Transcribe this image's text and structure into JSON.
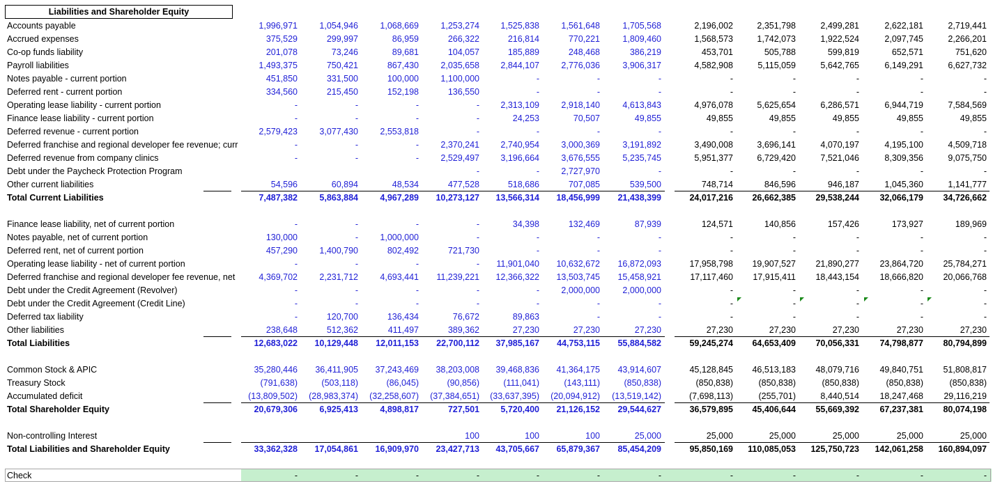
{
  "title": "Liabilities and Shareholder Equity",
  "colors": {
    "input_blue": "#1f1fd6",
    "check_green": "#c6efce",
    "error_triangle": "#1a8a1a"
  },
  "rows": [
    {
      "label": "Accounts payable",
      "values": [
        "1,996,971",
        "1,054,946",
        "1,068,669",
        "1,253,274",
        "1,525,838",
        "1,561,648",
        "1,705,568",
        "2,196,002",
        "2,351,798",
        "2,499,281",
        "2,622,181",
        "2,719,441"
      ]
    },
    {
      "label": "Accrued expenses",
      "values": [
        "375,529",
        "299,997",
        "86,959",
        "266,322",
        "216,814",
        "770,221",
        "1,809,460",
        "1,568,573",
        "1,742,073",
        "1,922,524",
        "2,097,745",
        "2,266,201"
      ]
    },
    {
      "label": "Co-op funds liability",
      "values": [
        "201,078",
        "73,246",
        "89,681",
        "104,057",
        "185,889",
        "248,468",
        "386,219",
        "453,701",
        "505,788",
        "599,819",
        "652,571",
        "751,620"
      ]
    },
    {
      "label": "Payroll liabilities",
      "values": [
        "1,493,375",
        "750,421",
        "867,430",
        "2,035,658",
        "2,844,107",
        "2,776,036",
        "3,906,317",
        "4,582,908",
        "5,115,059",
        "5,642,765",
        "6,149,291",
        "6,627,732"
      ]
    },
    {
      "label": "Notes payable - current portion",
      "values": [
        "451,850",
        "331,500",
        "100,000",
        "1,100,000",
        "-",
        "-",
        "-",
        "-",
        "-",
        "-",
        "-",
        "-"
      ]
    },
    {
      "label": "Deferred rent - current portion",
      "values": [
        "334,560",
        "215,450",
        "152,198",
        "136,550",
        "-",
        "-",
        "-",
        "-",
        "-",
        "-",
        "-",
        "-"
      ]
    },
    {
      "label": "Operating lease liability - current portion",
      "values": [
        "-",
        "-",
        "-",
        "-",
        "2,313,109",
        "2,918,140",
        "4,613,843",
        "4,976,078",
        "5,625,654",
        "6,286,571",
        "6,944,719",
        "7,584,569"
      ]
    },
    {
      "label": "Finance lease liability - current portion",
      "values": [
        "-",
        "-",
        "-",
        "-",
        "24,253",
        "70,507",
        "49,855",
        "49,855",
        "49,855",
        "49,855",
        "49,855",
        "49,855"
      ]
    },
    {
      "label": "Deferred revenue - current portion",
      "values": [
        "2,579,423",
        "3,077,430",
        "2,553,818",
        "-",
        "-",
        "-",
        "-",
        "-",
        "-",
        "-",
        "-",
        "-"
      ]
    },
    {
      "label": "Deferred franchise and regional developer fee revenue; curr",
      "values": [
        "-",
        "-",
        "-",
        "2,370,241",
        "2,740,954",
        "3,000,369",
        "3,191,892",
        "3,490,008",
        "3,696,141",
        "4,070,197",
        "4,195,100",
        "4,509,718"
      ]
    },
    {
      "label": "Deferred revenue from company clinics",
      "values": [
        "-",
        "-",
        "-",
        "2,529,497",
        "3,196,664",
        "3,676,555",
        "5,235,745",
        "5,951,377",
        "6,729,420",
        "7,521,046",
        "8,309,356",
        "9,075,750"
      ]
    },
    {
      "label": "Debt under the Paycheck Protection Program",
      "values": [
        "",
        "",
        "",
        "-",
        "-",
        "2,727,970",
        "-",
        "-",
        "-",
        "-",
        "-",
        "-"
      ]
    },
    {
      "label": "Other current liabilities",
      "values": [
        "54,596",
        "60,894",
        "48,534",
        "477,528",
        "518,686",
        "707,085",
        "539,500",
        "748,714",
        "846,596",
        "946,187",
        "1,045,360",
        "1,141,777"
      ]
    },
    {
      "label": "Total Current Liabilities",
      "bold": true,
      "values": [
        "7,487,382",
        "5,863,884",
        "4,967,289",
        "10,273,127",
        "13,566,314",
        "18,456,999",
        "21,438,399",
        "24,017,216",
        "26,662,385",
        "29,538,244",
        "32,066,179",
        "34,726,662"
      ]
    },
    {
      "label": "Finance lease liability, net of current portion",
      "values": [
        "-",
        "-",
        "-",
        "-",
        "34,398",
        "132,469",
        "87,939",
        "124,571",
        "140,856",
        "157,426",
        "173,927",
        "189,969"
      ]
    },
    {
      "label": "Notes payable, net of current portion",
      "values": [
        "130,000",
        "-",
        "1,000,000",
        "-",
        "-",
        "-",
        "-",
        "-",
        "-",
        "-",
        "-",
        "-"
      ]
    },
    {
      "label": "Deferred rent, net of current portion",
      "values": [
        "457,290",
        "1,400,790",
        "802,492",
        "721,730",
        "-",
        "-",
        "-",
        "-",
        "-",
        "-",
        "-",
        "-"
      ]
    },
    {
      "label": "Operating lease liability - net of current portion",
      "values": [
        "-",
        "-",
        "-",
        "-",
        "11,901,040",
        "10,632,672",
        "16,872,093",
        "17,958,798",
        "19,907,527",
        "21,890,277",
        "23,864,720",
        "25,784,271"
      ]
    },
    {
      "label": "Deferred franchise and regional developer fee revenue, net",
      "values": [
        "4,369,702",
        "2,231,712",
        "4,693,441",
        "11,239,221",
        "12,366,322",
        "13,503,745",
        "15,458,921",
        "17,117,460",
        "17,915,411",
        "18,443,154",
        "18,666,820",
        "20,066,768"
      ]
    },
    {
      "label": "Debt under the Credit Agreement (Revolver)",
      "values": [
        "-",
        "-",
        "-",
        "-",
        "-",
        "2,000,000",
        "2,000,000",
        "-",
        "-",
        "-",
        "-",
        "-"
      ]
    },
    {
      "label": "Debt under the Credit Agreement (Credit Line)",
      "values": [
        "-",
        "-",
        "-",
        "-",
        "-",
        "-",
        "-",
        "-",
        "-",
        "-",
        "-",
        "-"
      ]
    },
    {
      "label": "Deferred tax liability",
      "values": [
        "-",
        "120,700",
        "136,434",
        "76,672",
        "89,863",
        "-",
        "-",
        "-",
        "-",
        "-",
        "-",
        "-"
      ]
    },
    {
      "label": "Other liabilities",
      "values": [
        "238,648",
        "512,362",
        "411,497",
        "389,362",
        "27,230",
        "27,230",
        "27,230",
        "27,230",
        "27,230",
        "27,230",
        "27,230",
        "27,230"
      ]
    },
    {
      "label": "Total Liabilities",
      "bold": true,
      "values": [
        "12,683,022",
        "10,129,448",
        "12,011,153",
        "22,700,112",
        "37,985,167",
        "44,753,115",
        "55,884,582",
        "59,245,274",
        "64,653,409",
        "70,056,331",
        "74,798,877",
        "80,794,899"
      ]
    },
    {
      "label": "Common Stock & APIC",
      "values": [
        "35,280,446",
        "36,411,905",
        "37,243,469",
        "38,203,008",
        "39,468,836",
        "41,364,175",
        "43,914,607",
        "45,128,845",
        "46,513,183",
        "48,079,716",
        "49,840,751",
        "51,808,817"
      ]
    },
    {
      "label": "Treasury Stock",
      "values": [
        "(791,638)",
        "(503,118)",
        "(86,045)",
        "(90,856)",
        "(111,041)",
        "(143,111)",
        "(850,838)",
        "(850,838)",
        "(850,838)",
        "(850,838)",
        "(850,838)",
        "(850,838)"
      ]
    },
    {
      "label": "Accumulated deficit",
      "values": [
        "(13,809,502)",
        "(28,983,374)",
        "(32,258,607)",
        "(37,384,651)",
        "(33,637,395)",
        "(20,094,912)",
        "(13,519,142)",
        "(7,698,113)",
        "(255,701)",
        "8,440,514",
        "18,247,468",
        "29,116,219"
      ]
    },
    {
      "label": "Total Shareholder Equity",
      "bold": true,
      "values": [
        "20,679,306",
        "6,925,413",
        "4,898,817",
        "727,501",
        "5,720,400",
        "21,126,152",
        "29,544,627",
        "36,579,895",
        "45,406,644",
        "55,669,392",
        "67,237,381",
        "80,074,198"
      ]
    },
    {
      "label": "Non-controlling Interest",
      "values": [
        "",
        "",
        "",
        "100",
        "100",
        "100",
        "25,000",
        "25,000",
        "25,000",
        "25,000",
        "25,000",
        "25,000"
      ]
    },
    {
      "label": "Total Liabilities and Shareholder Equity",
      "bold": true,
      "values": [
        "33,362,328",
        "17,054,861",
        "16,909,970",
        "23,427,713",
        "43,705,667",
        "65,879,367",
        "85,454,209",
        "95,850,169",
        "110,085,053",
        "125,750,723",
        "142,061,258",
        "160,894,097"
      ]
    },
    {
      "label": "Check",
      "values": [
        "-",
        "-",
        "-",
        "-",
        "-",
        "-",
        "-",
        "-",
        "-",
        "-",
        "-",
        "-"
      ]
    }
  ]
}
